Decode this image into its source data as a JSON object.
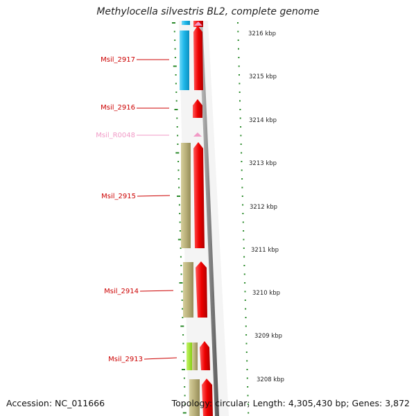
{
  "title": "Methylocella silvestris BL2, complete genome",
  "footer": {
    "accession": "Accession: NC_011666",
    "summary": "Topology: circular; Length: 4,305,430 bp; Genes: 3,872"
  },
  "scale": {
    "unit": "kbp",
    "ticks": [
      {
        "label": "3216 kbp"
      },
      {
        "label": "3215 kbp"
      },
      {
        "label": "3214 kbp"
      },
      {
        "label": "3213 kbp"
      },
      {
        "label": "3212 kbp"
      },
      {
        "label": "3211 kbp"
      },
      {
        "label": "3210 kbp"
      },
      {
        "label": "3209 kbp"
      },
      {
        "label": "3208 kbp"
      }
    ]
  },
  "genes": [
    {
      "name": "Msil_2917",
      "color": "#cc0000",
      "cds_color": "#22c0ee",
      "kind": "cds"
    },
    {
      "name": "Msil_2916",
      "color": "#cc0000",
      "kind": "small"
    },
    {
      "name": "Msil_R0048",
      "color": "#f19ac6",
      "kind": "rna"
    },
    {
      "name": "Msil_2915",
      "color": "#cc0000",
      "cds_color": "#b7ae78",
      "kind": "cds"
    },
    {
      "name": "Msil_2914",
      "color": "#cc0000",
      "cds_color": "#b7ae78",
      "kind": "cds"
    },
    {
      "name": "Msil_2913",
      "color": "#cc0000",
      "cds_color": "#9ee02a",
      "kind": "cds"
    }
  ],
  "colors": {
    "arrow": "#ee0000",
    "backbone": "#888888",
    "tick": "#2a8a2a",
    "rna": "#f19ac6"
  }
}
